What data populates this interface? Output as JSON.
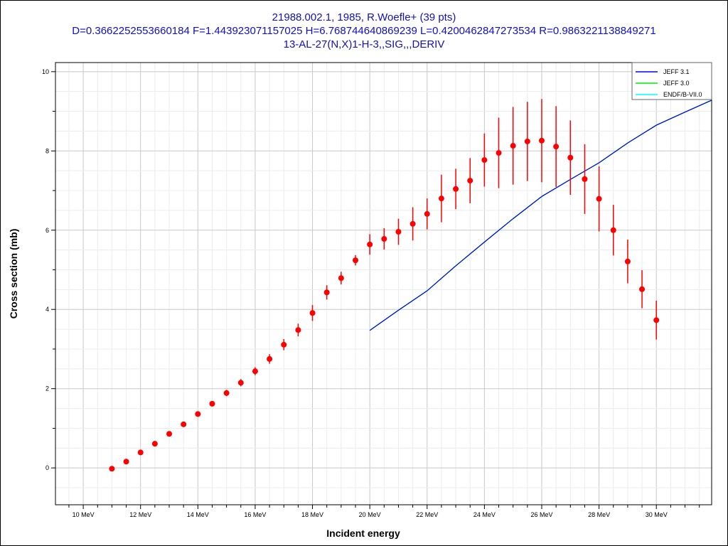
{
  "chart_data": {
    "type": "scatter",
    "title": [
      "21988.002.1, 1985, R.Woefle+ (39 pts)",
      "D=0.3662252553660184 F=1.443923071157025 H=6.768744640869239 L=0.4200462847273534 R=0.9863221138849271",
      "13-AL-27(N,X)1-H-3,,SIG,,,DERIV"
    ],
    "xlabel": "Incident energy",
    "ylabel": "Cross section (mb)",
    "xlim": [
      9.03,
      31.93
    ],
    "ylim": [
      -0.93,
      10.23
    ],
    "grid": true,
    "x_ticks": [
      10,
      12,
      14,
      16,
      18,
      20,
      22,
      24,
      26,
      28,
      30
    ],
    "x_tick_labels": [
      "10 MeV",
      "12 MeV",
      "14 MeV",
      "16 MeV",
      "18 MeV",
      "20 MeV",
      "22 MeV",
      "24 MeV",
      "26 MeV",
      "28 MeV",
      "30 MeV"
    ],
    "y_ticks": [
      0,
      2,
      4,
      6,
      8,
      10
    ],
    "y_tick_labels": [
      "0",
      "2",
      "4",
      "6",
      "8",
      "10"
    ],
    "legend_position": "top-right",
    "legend": [
      "JEFF 3.1",
      "JEFF 3.0",
      "ENDF/B-VII.0"
    ],
    "colors": {
      "title": "#1010c8",
      "data": "#ff0000",
      "JEFF 3.1": "#0000ff",
      "JEFF 3.0": "#00ee00",
      "ENDF/B-VII.0": "#00ffff"
    },
    "experimental": {
      "x": [
        11,
        11.5,
        12,
        12.5,
        13,
        13.5,
        14,
        14.5,
        15,
        15.5,
        16,
        16.5,
        17,
        17.5,
        18,
        18.5,
        19,
        19.5,
        20,
        20.5,
        21,
        21.5,
        22,
        22.5,
        23,
        23.5,
        24,
        24.5,
        25,
        25.5,
        26,
        26.5,
        27,
        27.5,
        28,
        28.5,
        29,
        29.5,
        30
      ],
      "y": [
        -0.02,
        0.16,
        0.39,
        0.61,
        0.86,
        1.1,
        1.36,
        1.62,
        1.89,
        2.15,
        2.44,
        2.75,
        3.11,
        3.48,
        3.91,
        4.43,
        4.79,
        5.24,
        5.64,
        5.78,
        5.96,
        6.16,
        6.41,
        6.8,
        7.04,
        7.25,
        7.77,
        7.95,
        8.13,
        8.24,
        8.26,
        8.11,
        7.83,
        7.29,
        6.79,
        6.0,
        5.21,
        4.51,
        3.73
      ],
      "err": [
        0.03,
        0.04,
        0.04,
        0.05,
        0.05,
        0.06,
        0.06,
        0.07,
        0.08,
        0.09,
        0.1,
        0.12,
        0.14,
        0.16,
        0.2,
        0.18,
        0.16,
        0.13,
        0.26,
        0.27,
        0.33,
        0.42,
        0.39,
        0.6,
        0.51,
        0.57,
        0.67,
        0.89,
        0.98,
        1.0,
        1.05,
        1.02,
        0.94,
        0.88,
        0.82,
        0.64,
        0.55,
        0.48,
        0.49
      ]
    },
    "series": [
      {
        "name": "ENDF/B-VII.0",
        "x": [
          20,
          21,
          22,
          23,
          24,
          25,
          26,
          27,
          28,
          29,
          30,
          31,
          31.93
        ],
        "y": [
          3.47,
          3.98,
          4.47,
          5.1,
          5.7,
          6.29,
          6.85,
          7.28,
          7.7,
          8.2,
          8.65,
          8.98,
          9.28
        ]
      },
      {
        "name": "JEFF 3.0",
        "x": [
          20,
          21,
          22,
          23,
          24,
          25,
          26,
          27,
          28,
          29,
          30,
          31,
          31.93
        ],
        "y": [
          3.47,
          3.98,
          4.47,
          5.1,
          5.7,
          6.29,
          6.85,
          7.28,
          7.7,
          8.2,
          8.65,
          8.98,
          9.28
        ]
      },
      {
        "name": "JEFF 3.1",
        "x": [
          20,
          21,
          22,
          23,
          24,
          25,
          26,
          27,
          28,
          29,
          30,
          31,
          31.93
        ],
        "y": [
          3.47,
          3.98,
          4.47,
          5.1,
          5.7,
          6.29,
          6.85,
          7.28,
          7.7,
          8.2,
          8.65,
          8.98,
          9.28
        ]
      }
    ]
  }
}
